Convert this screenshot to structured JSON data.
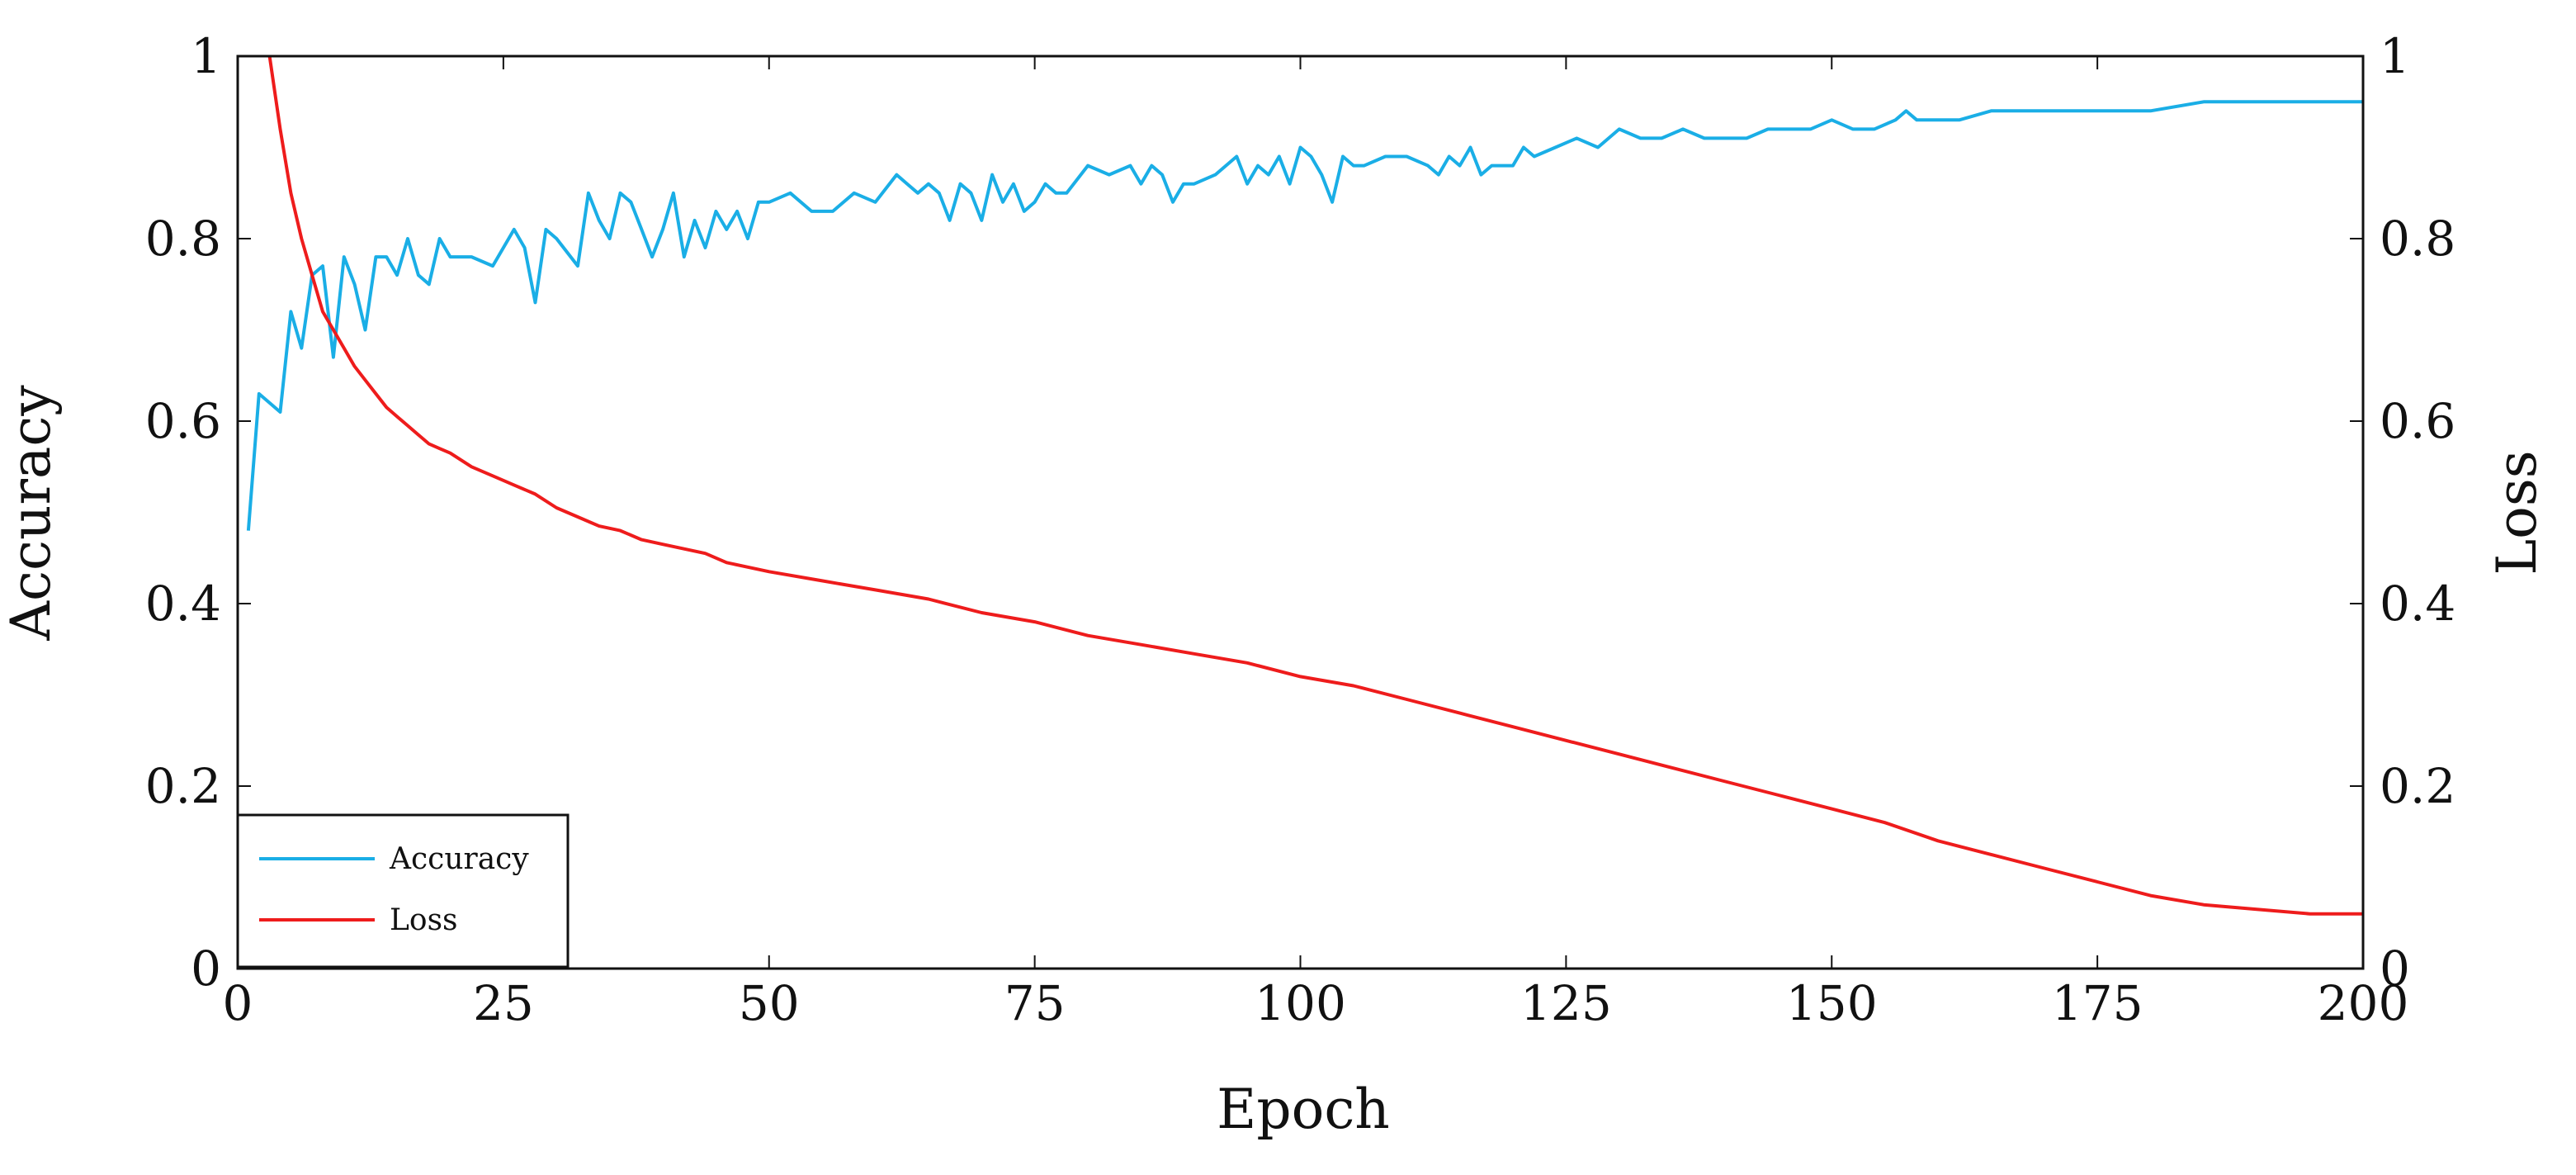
{
  "chart_data": {
    "type": "line",
    "xlabel": "Epoch",
    "ylabel_left": "Accuracy",
    "ylabel_right": "Loss",
    "xlim": [
      0,
      200
    ],
    "ylim_left": [
      0,
      1
    ],
    "ylim_right": [
      0,
      1
    ],
    "x_ticks": [
      0,
      25,
      50,
      75,
      100,
      125,
      150,
      175,
      200
    ],
    "x_tick_labels": [
      "0",
      "25",
      "50",
      "75",
      "100",
      "125",
      "150",
      "175",
      "200"
    ],
    "y_ticks": [
      0,
      0.2,
      0.4,
      0.6,
      0.8,
      1
    ],
    "y_tick_labels": [
      "0",
      "0.2",
      "0.4",
      "0.6",
      "0.8",
      "1"
    ],
    "grid": false,
    "legend_position": "bottom-left",
    "series": [
      {
        "name": "Accuracy",
        "axis": "left",
        "color": "#1aaee6",
        "x": [
          1,
          2,
          3,
          4,
          5,
          6,
          7,
          8,
          9,
          10,
          11,
          12,
          13,
          14,
          15,
          16,
          17,
          18,
          19,
          20,
          22,
          24,
          26,
          27,
          28,
          29,
          30,
          32,
          33,
          34,
          35,
          36,
          37,
          38,
          39,
          40,
          41,
          42,
          43,
          44,
          45,
          46,
          47,
          48,
          49,
          50,
          52,
          54,
          56,
          58,
          60,
          62,
          63,
          64,
          65,
          66,
          67,
          68,
          69,
          70,
          71,
          72,
          73,
          74,
          75,
          76,
          77,
          78,
          80,
          82,
          84,
          85,
          86,
          87,
          88,
          89,
          90,
          92,
          94,
          95,
          96,
          97,
          98,
          99,
          100,
          101,
          102,
          103,
          104,
          105,
          106,
          108,
          110,
          112,
          113,
          114,
          115,
          116,
          117,
          118,
          120,
          121,
          122,
          124,
          126,
          128,
          130,
          132,
          134,
          136,
          138,
          140,
          142,
          144,
          146,
          148,
          150,
          152,
          154,
          156,
          157,
          158,
          160,
          162,
          165,
          170,
          175,
          180,
          185,
          190,
          195,
          200
        ],
        "values": [
          0.48,
          0.63,
          0.62,
          0.61,
          0.72,
          0.68,
          0.76,
          0.77,
          0.67,
          0.78,
          0.75,
          0.7,
          0.78,
          0.78,
          0.76,
          0.8,
          0.76,
          0.75,
          0.8,
          0.78,
          0.78,
          0.77,
          0.81,
          0.79,
          0.73,
          0.81,
          0.8,
          0.77,
          0.85,
          0.82,
          0.8,
          0.85,
          0.84,
          0.81,
          0.78,
          0.81,
          0.85,
          0.78,
          0.82,
          0.79,
          0.83,
          0.81,
          0.83,
          0.8,
          0.84,
          0.84,
          0.85,
          0.83,
          0.83,
          0.85,
          0.84,
          0.87,
          0.86,
          0.85,
          0.86,
          0.85,
          0.82,
          0.86,
          0.85,
          0.82,
          0.87,
          0.84,
          0.86,
          0.83,
          0.84,
          0.86,
          0.85,
          0.85,
          0.88,
          0.87,
          0.88,
          0.86,
          0.88,
          0.87,
          0.84,
          0.86,
          0.86,
          0.87,
          0.89,
          0.86,
          0.88,
          0.87,
          0.89,
          0.86,
          0.9,
          0.89,
          0.87,
          0.84,
          0.89,
          0.88,
          0.88,
          0.89,
          0.89,
          0.88,
          0.87,
          0.89,
          0.88,
          0.9,
          0.87,
          0.88,
          0.88,
          0.9,
          0.89,
          0.9,
          0.91,
          0.9,
          0.92,
          0.91,
          0.91,
          0.92,
          0.91,
          0.91,
          0.91,
          0.92,
          0.92,
          0.92,
          0.93,
          0.92,
          0.92,
          0.93,
          0.94,
          0.93,
          0.93,
          0.93,
          0.94,
          0.94,
          0.94,
          0.94,
          0.95,
          0.95,
          0.95,
          0.95
        ]
      },
      {
        "name": "Loss",
        "axis": "right",
        "color": "#ee1c1c",
        "x": [
          3,
          4,
          5,
          6,
          7,
          8,
          9,
          10,
          11,
          12,
          13,
          14,
          15,
          16,
          17,
          18,
          19,
          20,
          22,
          24,
          26,
          28,
          30,
          32,
          34,
          36,
          38,
          40,
          42,
          44,
          46,
          48,
          50,
          55,
          60,
          65,
          70,
          75,
          80,
          85,
          90,
          95,
          100,
          105,
          110,
          115,
          120,
          125,
          130,
          135,
          140,
          145,
          150,
          155,
          160,
          165,
          170,
          175,
          180,
          185,
          190,
          195,
          200
        ],
        "values": [
          1.0,
          0.92,
          0.85,
          0.8,
          0.76,
          0.72,
          0.7,
          0.68,
          0.66,
          0.645,
          0.63,
          0.615,
          0.605,
          0.595,
          0.585,
          0.575,
          0.57,
          0.565,
          0.55,
          0.54,
          0.53,
          0.52,
          0.505,
          0.495,
          0.485,
          0.48,
          0.47,
          0.465,
          0.46,
          0.455,
          0.445,
          0.44,
          0.435,
          0.425,
          0.415,
          0.405,
          0.39,
          0.38,
          0.365,
          0.355,
          0.345,
          0.335,
          0.32,
          0.31,
          0.295,
          0.28,
          0.265,
          0.25,
          0.235,
          0.22,
          0.205,
          0.19,
          0.175,
          0.16,
          0.14,
          0.125,
          0.11,
          0.095,
          0.08,
          0.07,
          0.065,
          0.06,
          0.06
        ]
      }
    ]
  }
}
